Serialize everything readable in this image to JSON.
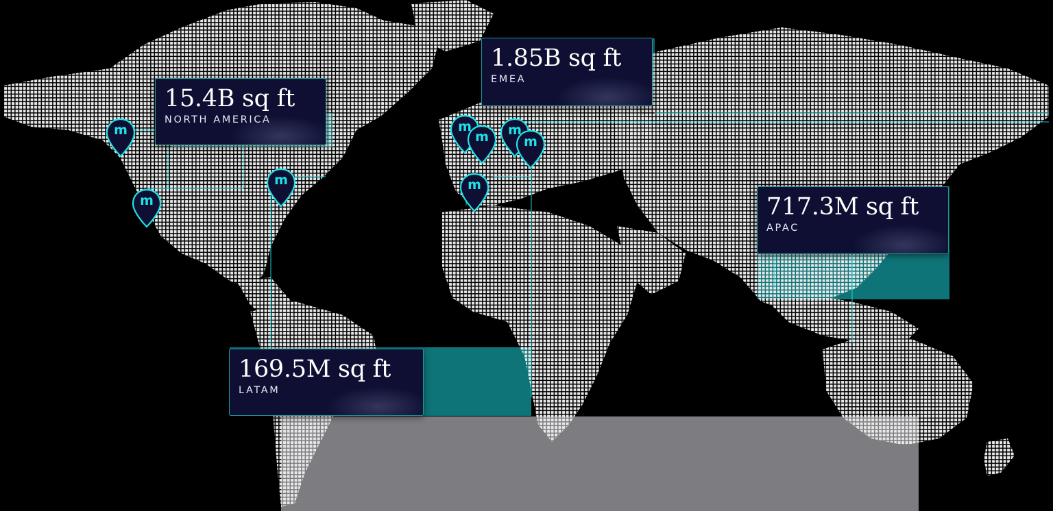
{
  "colors": {
    "background": "#000000",
    "land_dots": "#e8e8e8",
    "teal_block": "#0e7478",
    "grey_block": "#7d7c80",
    "card_bg": "#0e0f33",
    "card_border": "#1f9a96",
    "accent": "#1ee3e8",
    "pin_fill": "#0e0f33"
  },
  "pin_icon": "map-pin-icon",
  "pin_letter": "m",
  "stats": [
    {
      "id": "north-america",
      "value": "15.4B sq ft",
      "region": "NORTH AMERICA"
    },
    {
      "id": "emea",
      "value": "1.85B sq ft",
      "region": "EMEA"
    },
    {
      "id": "apac",
      "value": "717.3M sq ft",
      "region": "APAC"
    },
    {
      "id": "latam",
      "value": "169.5M sq ft",
      "region": "LATAM"
    }
  ]
}
